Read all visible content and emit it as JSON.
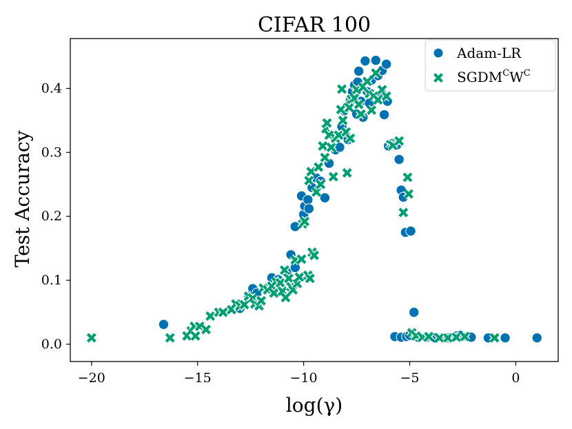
{
  "chart_data": {
    "type": "scatter",
    "title": "CIFAR 100",
    "xlabel": "log(γ)",
    "ylabel": "Test Accuracy",
    "xlim": [
      -21,
      2
    ],
    "ylim": [
      -0.027,
      0.478
    ],
    "xticks": [
      -20,
      -15,
      -10,
      -5,
      0
    ],
    "xtick_labels": [
      "−20",
      "−15",
      "−10",
      "−5",
      "0"
    ],
    "yticks": [
      0.0,
      0.1,
      0.2,
      0.3,
      0.4
    ],
    "ytick_labels": [
      "0.0",
      "0.1",
      "0.2",
      "0.3",
      "0.4"
    ],
    "grid": false,
    "legend_position": "top-right",
    "colors": {
      "adam": "#0072b2",
      "sgdm": "#009e73"
    },
    "series": [
      {
        "name": "Adam-LR",
        "legend_text": "Adam-LR",
        "marker": "circle",
        "color": "#0072b2",
        "points": [
          [
            -16.6,
            0.031
          ],
          [
            -13.0,
            0.056
          ],
          [
            -12.6,
            0.075
          ],
          [
            -12.4,
            0.087
          ],
          [
            -12.2,
            0.08
          ],
          [
            -11.5,
            0.104
          ],
          [
            -11.2,
            0.101
          ],
          [
            -10.8,
            0.113
          ],
          [
            -10.6,
            0.14
          ],
          [
            -10.4,
            0.12
          ],
          [
            -10.4,
            0.184
          ],
          [
            -10.1,
            0.232
          ],
          [
            -10.0,
            0.203
          ],
          [
            -9.95,
            0.216
          ],
          [
            -9.8,
            0.226
          ],
          [
            -9.75,
            0.212
          ],
          [
            -9.6,
            0.245
          ],
          [
            -9.4,
            0.26
          ],
          [
            -9.2,
            0.255
          ],
          [
            -9.0,
            0.229
          ],
          [
            -8.8,
            0.283
          ],
          [
            -8.5,
            0.304
          ],
          [
            -8.3,
            0.308
          ],
          [
            -8.2,
            0.34
          ],
          [
            -8.1,
            0.365
          ],
          [
            -8.0,
            0.37
          ],
          [
            -7.9,
            0.32
          ],
          [
            -7.8,
            0.381
          ],
          [
            -7.7,
            0.395
          ],
          [
            -7.6,
            0.405
          ],
          [
            -7.5,
            0.36
          ],
          [
            -7.45,
            0.41
          ],
          [
            -7.4,
            0.427
          ],
          [
            -7.3,
            0.38
          ],
          [
            -7.2,
            0.355
          ],
          [
            -7.1,
            0.443
          ],
          [
            -7.0,
            0.395
          ],
          [
            -6.9,
            0.377
          ],
          [
            -6.8,
            0.413
          ],
          [
            -6.6,
            0.444
          ],
          [
            -6.5,
            0.42
          ],
          [
            -6.4,
            0.39
          ],
          [
            -6.3,
            0.428
          ],
          [
            -6.2,
            0.359
          ],
          [
            -6.1,
            0.438
          ],
          [
            -6.05,
            0.38
          ],
          [
            -6.0,
            0.31
          ],
          [
            -5.8,
            0.314
          ],
          [
            -5.6,
            0.312
          ],
          [
            -5.5,
            0.289
          ],
          [
            -5.4,
            0.241
          ],
          [
            -5.3,
            0.23
          ],
          [
            -5.2,
            0.175
          ],
          [
            -4.95,
            0.177
          ],
          [
            -4.8,
            0.05
          ],
          [
            -5.7,
            0.012
          ],
          [
            -5.4,
            0.011
          ],
          [
            -5.15,
            0.012
          ],
          [
            -5.0,
            0.014
          ],
          [
            -4.6,
            0.011
          ],
          [
            -4.2,
            0.011
          ],
          [
            -3.8,
            0.01
          ],
          [
            -3.2,
            0.01
          ],
          [
            -2.8,
            0.013
          ],
          [
            -2.6,
            0.014
          ],
          [
            -2.3,
            0.012
          ],
          [
            -2.1,
            0.011
          ],
          [
            -1.3,
            0.01
          ],
          [
            -0.5,
            0.01
          ],
          [
            1.0,
            0.01
          ]
        ]
      },
      {
        "name": "SGDMCWC",
        "legend_text": "SGDM",
        "legend_sup1": "C",
        "legend_text2": "W",
        "legend_sup2": "C",
        "marker": "x",
        "color": "#009e73",
        "points": [
          [
            -20.0,
            0.01
          ],
          [
            -16.3,
            0.01
          ],
          [
            -15.5,
            0.013
          ],
          [
            -15.3,
            0.021
          ],
          [
            -15.15,
            0.028
          ],
          [
            -15.1,
            0.013
          ],
          [
            -14.9,
            0.028
          ],
          [
            -14.6,
            0.023
          ],
          [
            -14.4,
            0.044
          ],
          [
            -14.0,
            0.05
          ],
          [
            -13.8,
            0.05
          ],
          [
            -13.4,
            0.054
          ],
          [
            -13.2,
            0.063
          ],
          [
            -13.0,
            0.06
          ],
          [
            -12.8,
            0.062
          ],
          [
            -12.6,
            0.075
          ],
          [
            -12.4,
            0.072
          ],
          [
            -12.3,
            0.063
          ],
          [
            -12.1,
            0.06
          ],
          [
            -12.0,
            0.068
          ],
          [
            -11.9,
            0.088
          ],
          [
            -11.7,
            0.085
          ],
          [
            -11.5,
            0.091
          ],
          [
            -11.4,
            0.08
          ],
          [
            -11.3,
            0.098
          ],
          [
            -11.1,
            0.096
          ],
          [
            -11.0,
            0.083
          ],
          [
            -10.9,
            0.116
          ],
          [
            -10.85,
            0.073
          ],
          [
            -10.7,
            0.103
          ],
          [
            -10.6,
            0.09
          ],
          [
            -10.5,
            0.085
          ],
          [
            -10.4,
            0.132
          ],
          [
            -10.3,
            0.095
          ],
          [
            -10.2,
            0.105
          ],
          [
            -10.1,
            0.133
          ],
          [
            -10.05,
            0.188
          ],
          [
            -9.95,
            0.192
          ],
          [
            -9.8,
            0.108
          ],
          [
            -9.75,
            0.256
          ],
          [
            -9.7,
            0.103
          ],
          [
            -9.65,
            0.27
          ],
          [
            -9.6,
            0.144
          ],
          [
            -9.5,
            0.139
          ],
          [
            -9.4,
            0.238
          ],
          [
            -9.3,
            0.277
          ],
          [
            -9.2,
            0.25
          ],
          [
            -9.1,
            0.31
          ],
          [
            -9.0,
            0.292
          ],
          [
            -8.95,
            0.337
          ],
          [
            -8.9,
            0.346
          ],
          [
            -8.8,
            0.327
          ],
          [
            -8.7,
            0.308
          ],
          [
            -8.6,
            0.262
          ],
          [
            -8.5,
            0.322
          ],
          [
            -8.35,
            0.327
          ],
          [
            -8.25,
            0.367
          ],
          [
            -8.2,
            0.399
          ],
          [
            -8.15,
            0.35
          ],
          [
            -8.0,
            0.332
          ],
          [
            -7.95,
            0.268
          ],
          [
            -7.85,
            0.37
          ],
          [
            -7.8,
            0.322
          ],
          [
            -7.75,
            0.383
          ],
          [
            -7.6,
            0.385
          ],
          [
            -7.5,
            0.398
          ],
          [
            -7.4,
            0.375
          ],
          [
            -7.3,
            0.36
          ],
          [
            -7.2,
            0.402
          ],
          [
            -7.0,
            0.411
          ],
          [
            -6.9,
            0.392
          ],
          [
            -6.8,
            0.366
          ],
          [
            -6.7,
            0.388
          ],
          [
            -6.6,
            0.424
          ],
          [
            -6.5,
            0.382
          ],
          [
            -6.3,
            0.398
          ],
          [
            -6.1,
            0.388
          ],
          [
            -5.9,
            0.312
          ],
          [
            -5.8,
            0.311
          ],
          [
            -5.5,
            0.318
          ],
          [
            -5.3,
            0.206
          ],
          [
            -5.1,
            0.261
          ],
          [
            -5.05,
            0.235
          ],
          [
            -4.9,
            0.018
          ],
          [
            -4.7,
            0.013
          ],
          [
            -4.4,
            0.011
          ],
          [
            -4.1,
            0.012
          ],
          [
            -3.6,
            0.01
          ],
          [
            -3.2,
            0.01
          ],
          [
            -2.8,
            0.011
          ],
          [
            -2.4,
            0.012
          ],
          [
            -1.0,
            0.01
          ]
        ]
      }
    ]
  }
}
